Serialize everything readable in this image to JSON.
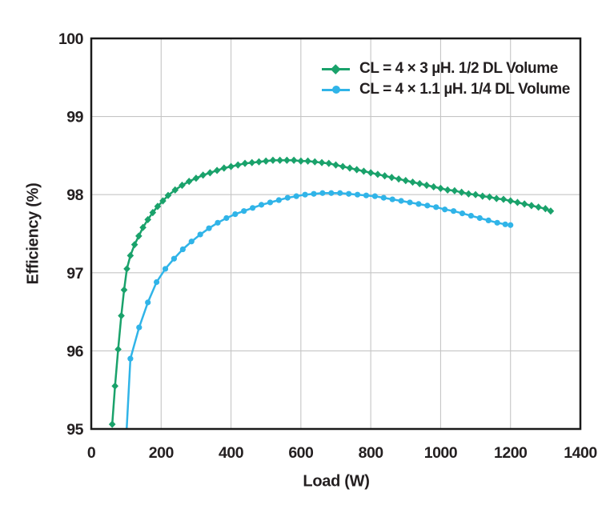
{
  "chart_data": {
    "type": "line",
    "title": "",
    "xlabel": "Load (W)",
    "ylabel": "Efficiency (%)",
    "xlim": [
      0,
      1400
    ],
    "ylim": [
      95,
      100
    ],
    "xticks": [
      0,
      200,
      400,
      600,
      800,
      1000,
      1200,
      1400
    ],
    "yticks": [
      95,
      96,
      97,
      98,
      99,
      100
    ],
    "grid": true,
    "legend_position": "top-right-inside",
    "axis_color": "#1a1a1a",
    "grid_color": "#c5c5c5",
    "text_color": "#231f20",
    "background": "#ffffff",
    "series": [
      {
        "name": "CL = 4 × 3 µH. 1/2 DL Volume",
        "color": "#1aa26b",
        "marker": "diamond",
        "points": [
          [
            60,
            95.06
          ],
          [
            68,
            95.55
          ],
          [
            77,
            96.02
          ],
          [
            86,
            96.45
          ],
          [
            94,
            96.78
          ],
          [
            102,
            97.05
          ],
          [
            112,
            97.22
          ],
          [
            124,
            97.36
          ],
          [
            136,
            97.47
          ],
          [
            148,
            97.58
          ],
          [
            162,
            97.68
          ],
          [
            176,
            97.77
          ],
          [
            190,
            97.85
          ],
          [
            205,
            97.92
          ],
          [
            220,
            97.99
          ],
          [
            240,
            98.06
          ],
          [
            260,
            98.12
          ],
          [
            280,
            98.17
          ],
          [
            300,
            98.21
          ],
          [
            320,
            98.25
          ],
          [
            340,
            98.28
          ],
          [
            360,
            98.31
          ],
          [
            380,
            98.34
          ],
          [
            400,
            98.36
          ],
          [
            420,
            98.38
          ],
          [
            440,
            98.4
          ],
          [
            460,
            98.41
          ],
          [
            480,
            98.42
          ],
          [
            500,
            98.43
          ],
          [
            520,
            98.44
          ],
          [
            540,
            98.44
          ],
          [
            560,
            98.44
          ],
          [
            580,
            98.44
          ],
          [
            600,
            98.43
          ],
          [
            620,
            98.43
          ],
          [
            640,
            98.42
          ],
          [
            660,
            98.41
          ],
          [
            680,
            98.4
          ],
          [
            700,
            98.38
          ],
          [
            720,
            98.36
          ],
          [
            740,
            98.34
          ],
          [
            760,
            98.32
          ],
          [
            780,
            98.3
          ],
          [
            800,
            98.28
          ],
          [
            820,
            98.26
          ],
          [
            840,
            98.24
          ],
          [
            860,
            98.22
          ],
          [
            880,
            98.2
          ],
          [
            900,
            98.18
          ],
          [
            920,
            98.16
          ],
          [
            940,
            98.14
          ],
          [
            960,
            98.12
          ],
          [
            980,
            98.1
          ],
          [
            1000,
            98.08
          ],
          [
            1020,
            98.06
          ],
          [
            1040,
            98.05
          ],
          [
            1060,
            98.03
          ],
          [
            1080,
            98.01
          ],
          [
            1100,
            98.0
          ],
          [
            1120,
            97.98
          ],
          [
            1140,
            97.97
          ],
          [
            1160,
            97.95
          ],
          [
            1180,
            97.94
          ],
          [
            1200,
            97.92
          ],
          [
            1220,
            97.9
          ],
          [
            1240,
            97.88
          ],
          [
            1260,
            97.86
          ],
          [
            1280,
            97.84
          ],
          [
            1300,
            97.82
          ],
          [
            1315,
            97.79
          ]
        ]
      },
      {
        "name": "CL = 4 × 1.1 µH. 1/4 DL Volume",
        "color": "#30b4e8",
        "marker": "circle",
        "points": [
          [
            98,
            94.72
          ],
          [
            112,
            95.9
          ],
          [
            137,
            96.3
          ],
          [
            162,
            96.62
          ],
          [
            187,
            96.88
          ],
          [
            212,
            97.05
          ],
          [
            237,
            97.18
          ],
          [
            262,
            97.3
          ],
          [
            287,
            97.4
          ],
          [
            312,
            97.49
          ],
          [
            337,
            97.57
          ],
          [
            362,
            97.64
          ],
          [
            387,
            97.7
          ],
          [
            412,
            97.75
          ],
          [
            437,
            97.79
          ],
          [
            462,
            97.83
          ],
          [
            487,
            97.87
          ],
          [
            512,
            97.9
          ],
          [
            537,
            97.93
          ],
          [
            562,
            97.96
          ],
          [
            587,
            97.98
          ],
          [
            612,
            98.0
          ],
          [
            637,
            98.01
          ],
          [
            662,
            98.02
          ],
          [
            687,
            98.02
          ],
          [
            712,
            98.02
          ],
          [
            737,
            98.01
          ],
          [
            762,
            98.0
          ],
          [
            787,
            97.99
          ],
          [
            812,
            97.98
          ],
          [
            837,
            97.96
          ],
          [
            862,
            97.94
          ],
          [
            887,
            97.92
          ],
          [
            912,
            97.9
          ],
          [
            937,
            97.88
          ],
          [
            962,
            97.86
          ],
          [
            987,
            97.84
          ],
          [
            1012,
            97.81
          ],
          [
            1037,
            97.79
          ],
          [
            1062,
            97.76
          ],
          [
            1087,
            97.73
          ],
          [
            1112,
            97.7
          ],
          [
            1137,
            97.67
          ],
          [
            1162,
            97.64
          ],
          [
            1185,
            97.62
          ],
          [
            1200,
            97.61
          ]
        ]
      }
    ]
  }
}
